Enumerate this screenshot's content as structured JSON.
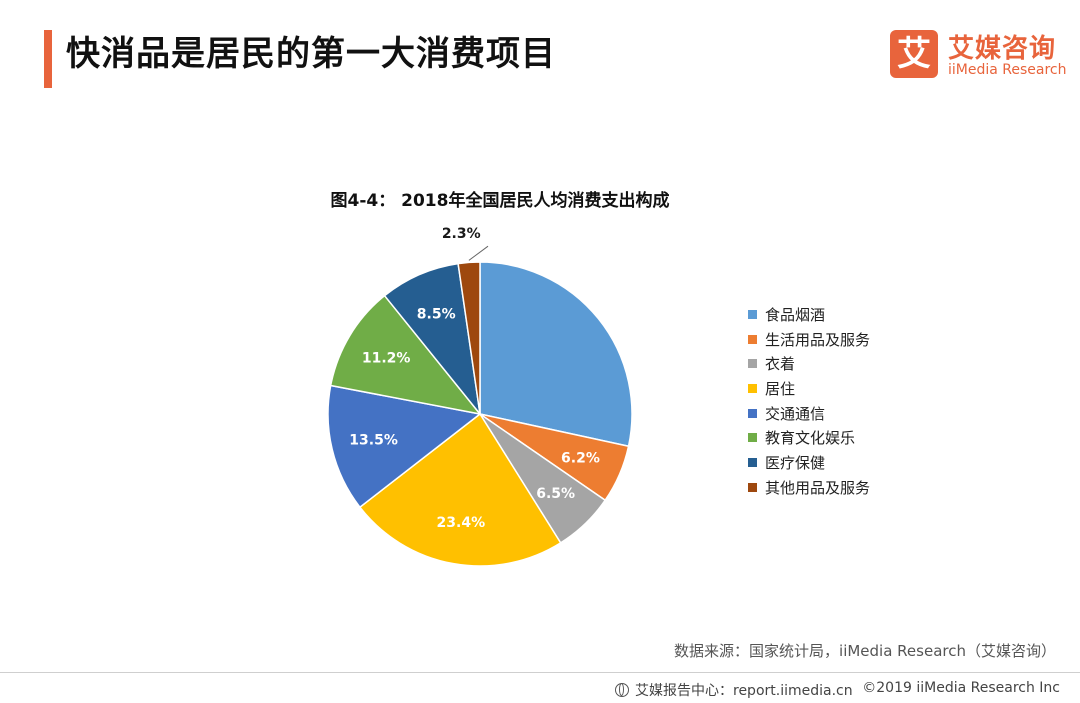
{
  "header": {
    "title": "快消品是居民的第一大消费项目",
    "logo_mark": "艾",
    "logo_cn": "艾媒咨询",
    "logo_en": "iiMedia Research"
  },
  "chart_title": "图4-4： 2018年全国居民人均消费支出构成",
  "chart_data": {
    "type": "pie",
    "title": "图4-4： 2018年全国居民人均消费支出构成",
    "slices": [
      {
        "name": "食品烟酒",
        "value": 28.4,
        "label": "",
        "color": "#5b9bd5",
        "label_color": "#ffffff"
      },
      {
        "name": "生活用品及服务",
        "value": 6.2,
        "label": "6.2%",
        "color": "#ed7d31",
        "label_color": "#ffffff"
      },
      {
        "name": "衣着",
        "value": 6.5,
        "label": "6.5%",
        "color": "#a5a5a5",
        "label_color": "#ffffff"
      },
      {
        "name": "居住",
        "value": 23.4,
        "label": "23.4%",
        "color": "#ffc000",
        "label_color": "#ffffff"
      },
      {
        "name": "交通通信",
        "value": 13.5,
        "label": "13.5%",
        "color": "#4472c4",
        "label_color": "#ffffff"
      },
      {
        "name": "教育文化娱乐",
        "value": 11.2,
        "label": "11.2%",
        "color": "#70ad47",
        "label_color": "#ffffff"
      },
      {
        "name": "医疗保健",
        "value": 8.5,
        "label": "8.5%",
        "color": "#255e91",
        "label_color": "#ffffff"
      },
      {
        "name": "其他用品及服务",
        "value": 2.3,
        "label": "2.3%",
        "color": "#9e480e",
        "label_color": "#1a1a1a"
      }
    ],
    "start_angle_deg": 0,
    "direction": "clockwise",
    "legend_position": "right"
  },
  "source": "数据来源：国家统计局，iiMedia Research（艾媒咨询）",
  "footer": {
    "left": "艾媒报告中心：report.iimedia.cn",
    "right": "©2019  iiMedia Research  Inc"
  }
}
